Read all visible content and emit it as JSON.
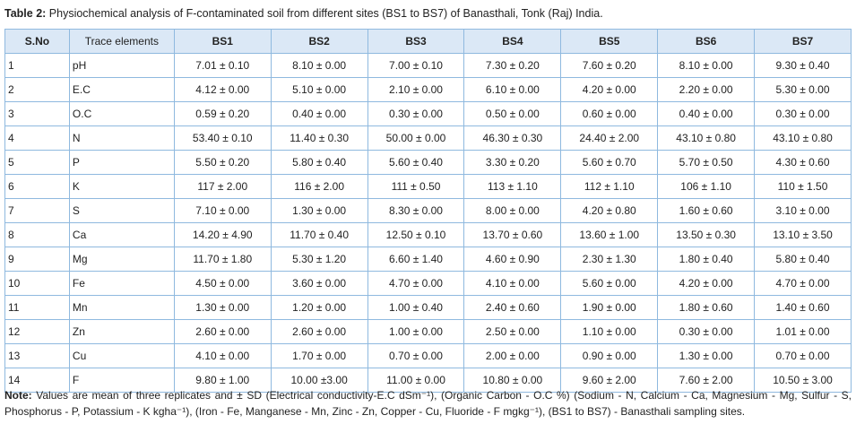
{
  "caption": {
    "label": "Table 2:",
    "text": " Physiochemical analysis of F-contaminated soil from different sites (BS1 to BS7) of Banasthali, Tonk (Raj) India."
  },
  "table": {
    "headers": [
      "S.No",
      "Trace elements",
      "BS1",
      "BS2",
      "BS3",
      "BS4",
      "BS5",
      "BS6",
      "BS7"
    ],
    "rows": [
      [
        "1",
        "pH",
        "7.01 ± 0.10",
        "8.10 ± 0.00",
        "7.00 ± 0.10",
        "7.30 ± 0.20",
        "7.60 ± 0.20",
        "8.10 ± 0.00",
        "9.30 ± 0.40"
      ],
      [
        "2",
        "E.C",
        "4.12 ± 0.00",
        "5.10 ± 0.00",
        "2.10 ± 0.00",
        "6.10 ± 0.00",
        "4.20 ± 0.00",
        "2.20 ± 0.00",
        "5.30 ± 0.00"
      ],
      [
        "3",
        "O.C",
        "0.59 ± 0.20",
        "0.40 ± 0.00",
        "0.30 ± 0.00",
        "0.50 ± 0.00",
        "0.60 ± 0.00",
        "0.40 ± 0.00",
        "0.30 ± 0.00"
      ],
      [
        "4",
        "N",
        "53.40 ± 0.10",
        "11.40 ± 0.30",
        "50.00 ± 0.00",
        "46.30 ± 0.30",
        "24.40 ± 2.00",
        "43.10 ± 0.80",
        "43.10 ± 0.80"
      ],
      [
        "5",
        "P",
        "5.50 ± 0.20",
        "5.80 ± 0.40",
        "5.60 ± 0.40",
        "3.30 ± 0.20",
        "5.60 ± 0.70",
        "5.70 ± 0.50",
        "4.30 ± 0.60"
      ],
      [
        "6",
        "K",
        "117 ± 2.00",
        "116 ± 2.00",
        "111 ± 0.50",
        "113 ± 1.10",
        "112 ± 1.10",
        "106 ± 1.10",
        "110 ± 1.50"
      ],
      [
        "7",
        "S",
        "7.10 ± 0.00",
        "1.30 ± 0.00",
        "8.30 ± 0.00",
        "8.00 ± 0.00",
        "4.20 ± 0.80",
        "1.60 ± 0.60",
        "3.10 ± 0.00"
      ],
      [
        "8",
        "Ca",
        "14.20 ± 4.90",
        "11.70 ± 0.40",
        "12.50 ± 0.10",
        "13.70 ± 0.60",
        "13.60 ± 1.00",
        "13.50 ± 0.30",
        "13.10 ± 3.50"
      ],
      [
        "9",
        "Mg",
        "11.70 ± 1.80",
        "5.30 ± 1.20",
        "6.60 ± 1.40",
        "4.60 ± 0.90",
        "2.30 ± 1.30",
        "1.80 ± 0.40",
        "5.80 ± 0.40"
      ],
      [
        "10",
        "Fe",
        "4.50 ± 0.00",
        "3.60 ± 0.00",
        "4.70 ± 0.00",
        "4.10 ± 0.00",
        "5.60 ± 0.00",
        "4.20 ± 0.00",
        "4.70 ± 0.00"
      ],
      [
        "11",
        "Mn",
        "1.30 ± 0.00",
        "1.20 ± 0.00",
        "1.00 ± 0.40",
        "2.40 ± 0.60",
        "1.90 ± 0.00",
        "1.80 ± 0.60",
        "1.40 ± 0.60"
      ],
      [
        "12",
        "Zn",
        "2.60 ± 0.00",
        "2.60 ± 0.00",
        "1.00 ± 0.00",
        "2.50 ± 0.00",
        "1.10 ± 0.00",
        "0.30 ± 0.00",
        "1.01 ± 0.00"
      ],
      [
        "13",
        "Cu",
        "4.10 ± 0.00",
        "1.70 ± 0.00",
        "0.70 ± 0.00",
        "2.00 ± 0.00",
        "0.90 ± 0.00",
        "1.30 ± 0.00",
        "0.70 ± 0.00"
      ],
      [
        "14",
        "F",
        "9.80 ± 1.00",
        "10.00 ±3.00",
        "11.00 ± 0.00",
        "10.80 ± 0.00",
        "9.60 ± 2.00",
        "7.60 ± 2.00",
        "10.50 ± 3.00"
      ]
    ]
  },
  "note": {
    "label": "Note:",
    "text": " Values are mean of three replicates and ± SD (Electrical conductivity-E.C dSm⁻¹), (Organic Carbon - O.C %) (Sodium - N, Calcium - Ca, Magnesium - Mg, Sulfur - S, Phosphorus - P, Potassium - K kgha⁻¹), (Iron - Fe, Manganese - Mn, Zinc - Zn, Copper - Cu, Fluoride - F mgkg⁻¹), (BS1 to BS7) - Banasthali sampling sites."
  },
  "colors": {
    "header_bg": "#dbe8f6",
    "border": "#8fb9df",
    "text": "#222222"
  }
}
